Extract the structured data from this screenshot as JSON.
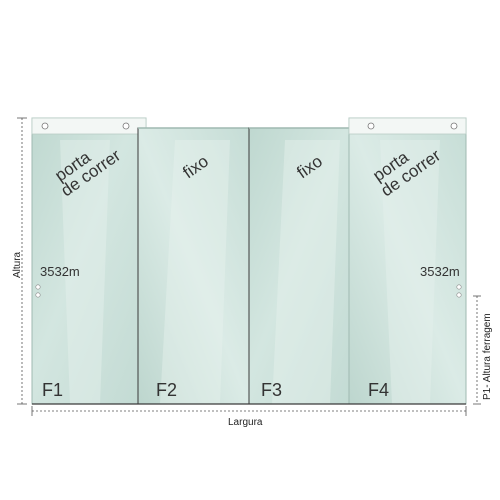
{
  "dimensions": {
    "height_label": "Altura",
    "width_label": "Largura",
    "hardware_height_label": "P1- Altura ferragem"
  },
  "panels": [
    {
      "id": "F1",
      "type_lines": [
        "porta",
        "de correr"
      ],
      "measurement": "3532m",
      "has_handle_dots": true
    },
    {
      "id": "F2",
      "type_lines": [
        "fixo"
      ]
    },
    {
      "id": "F3",
      "type_lines": [
        "fixo"
      ]
    },
    {
      "id": "F4",
      "type_lines": [
        "porta",
        "de correr"
      ],
      "measurement": "3532m",
      "has_handle_dots": true
    }
  ],
  "colors": {
    "glass": "#cfe3dd",
    "glass_light": "#e6f0ec",
    "frame_edge": "#3a3a3a",
    "top_rail": "#f2f6f4",
    "dimension_line": "#555555"
  }
}
